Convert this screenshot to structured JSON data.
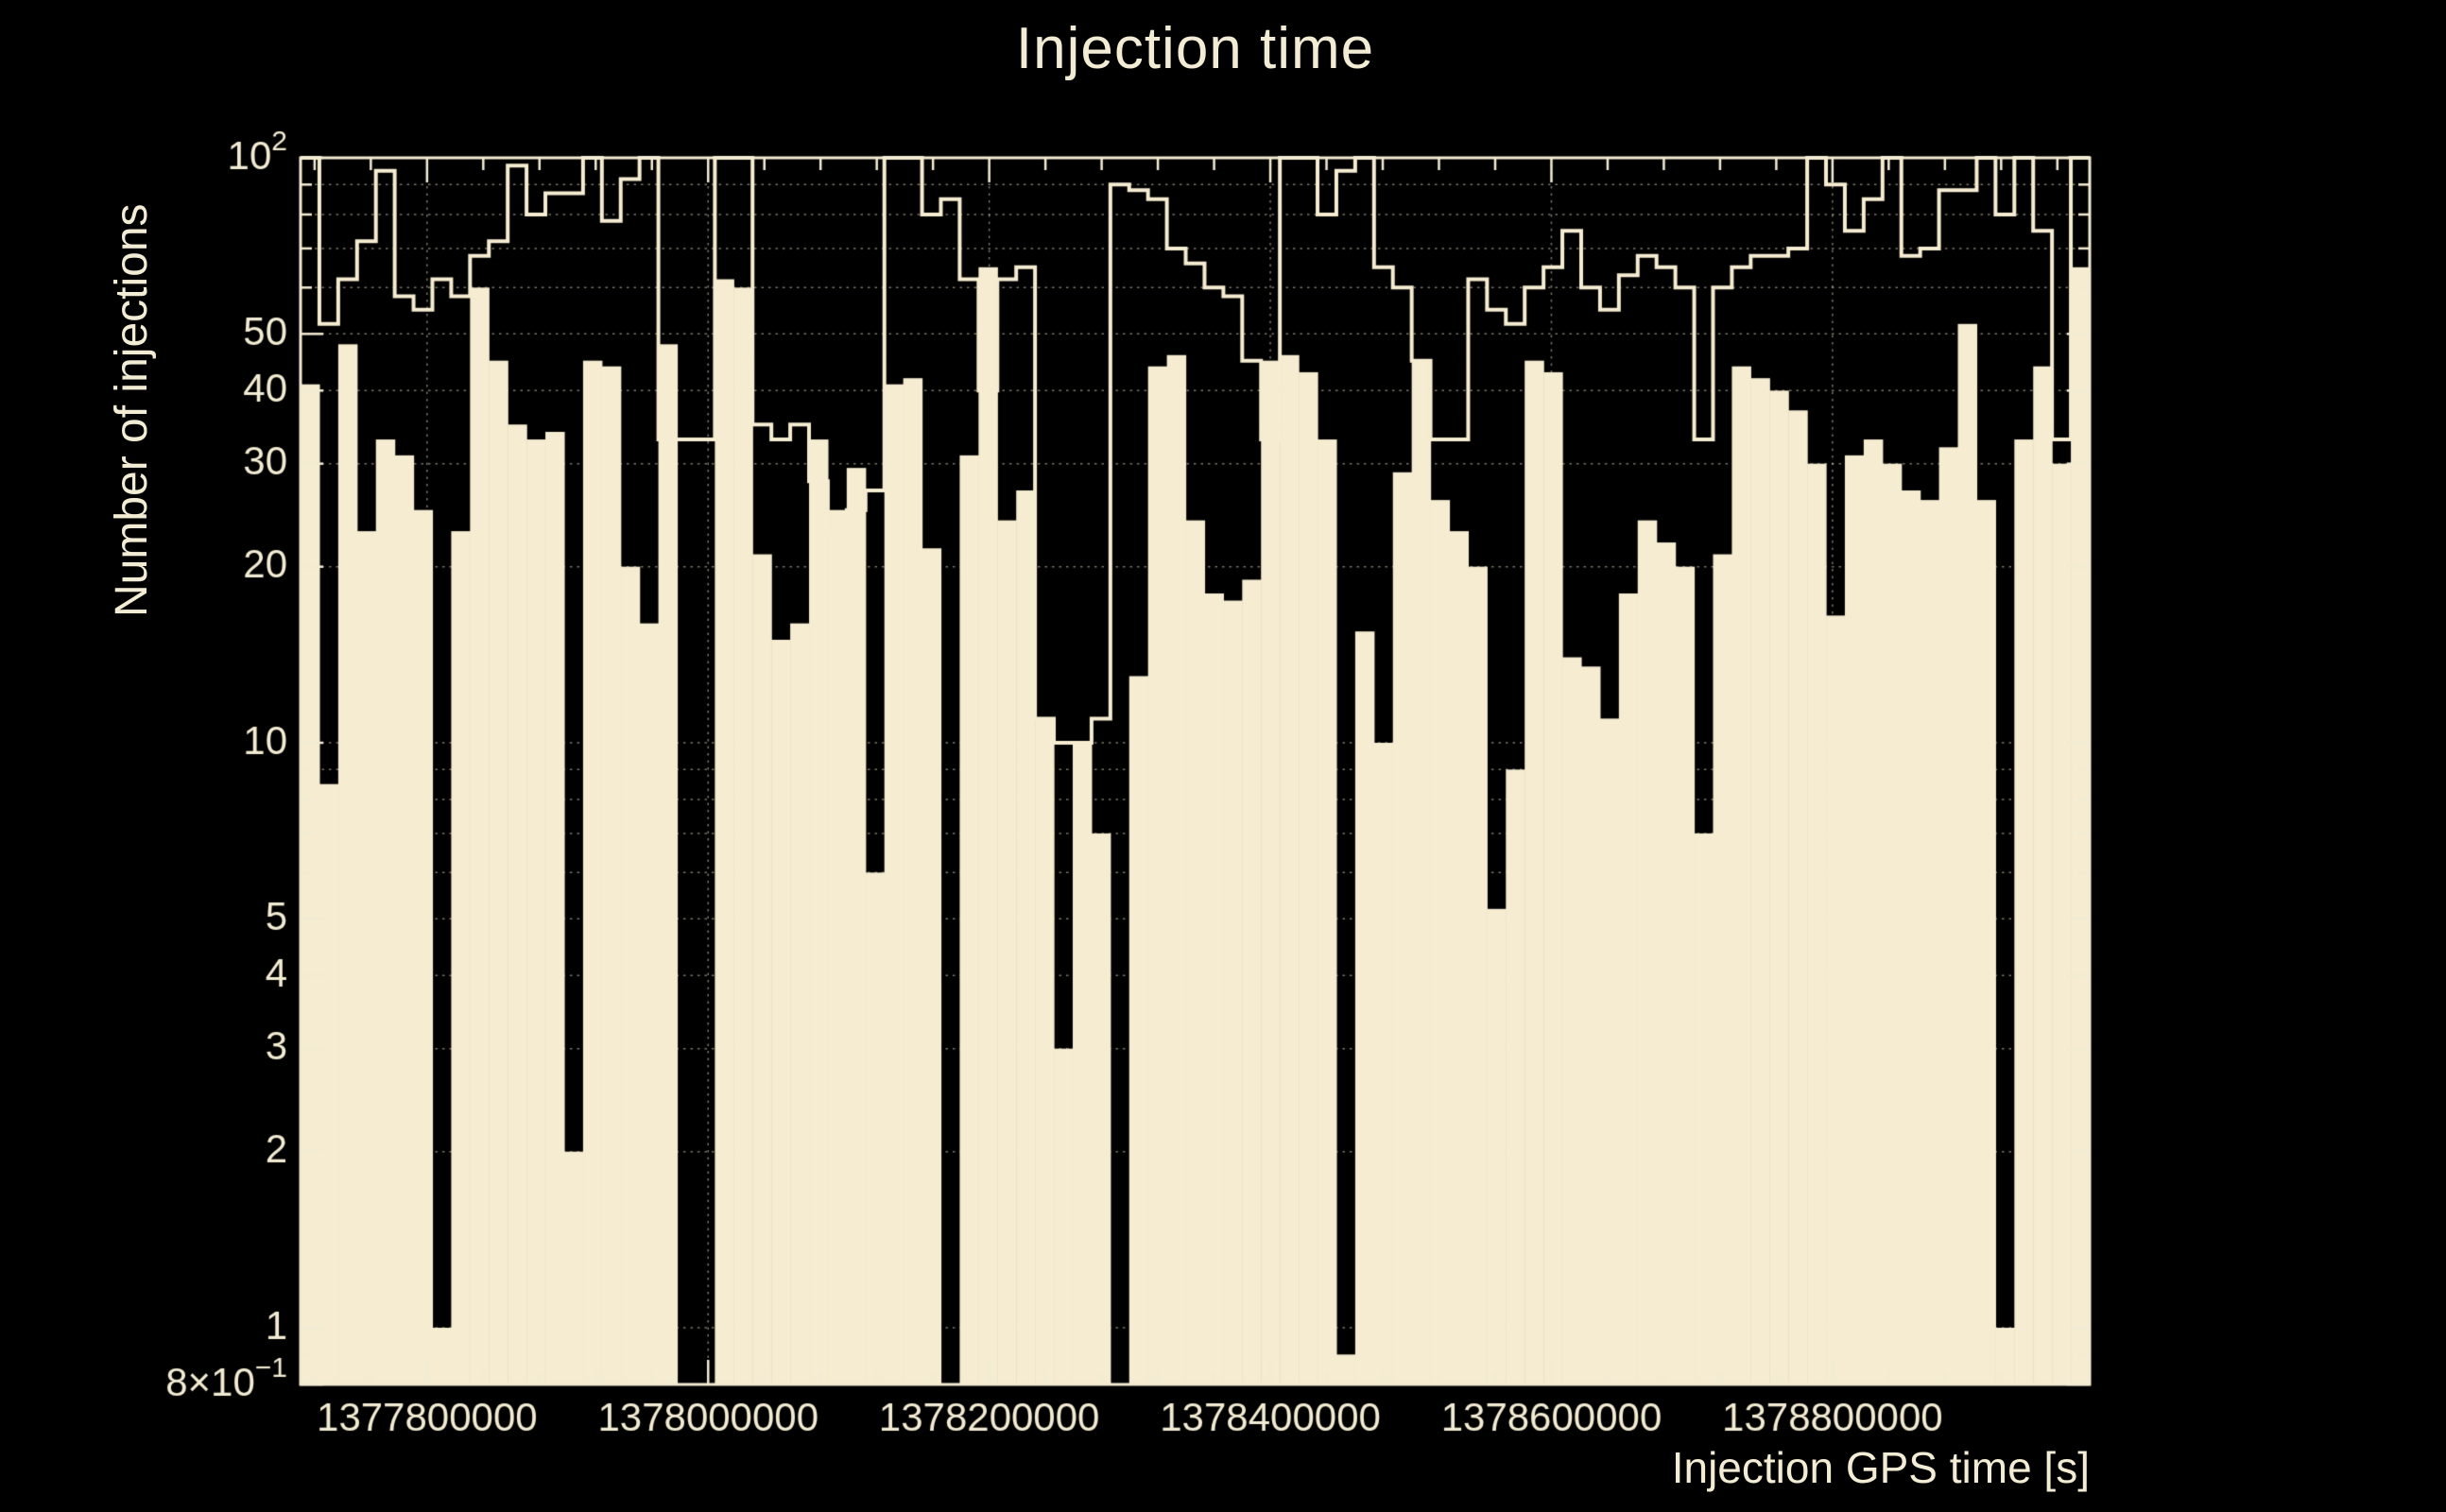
{
  "chart_data": {
    "type": "histogram",
    "title": "Injection time",
    "xlabel": "Injection GPS time [s]",
    "ylabel": "Number of injections",
    "x_min": 1377710000,
    "x_max": 1378983000,
    "y_min": 0.8,
    "y_max": 100,
    "y_scale": "log",
    "grid": "dotted",
    "background": "#000000",
    "bar_color": "#f5ecd1",
    "line_color": "#f5ecd1",
    "axis_color": "#f3ecd4",
    "grid_color": "rgba(243,236,212,0.5)",
    "series": [
      {
        "name": "injections-filled",
        "style": "fill",
        "values": [
          41,
          8.5,
          48,
          23,
          33,
          31,
          25,
          1,
          23,
          60,
          45,
          35,
          33,
          34,
          2,
          45,
          44,
          20,
          16,
          48,
          0,
          0,
          62,
          60,
          21,
          15,
          16,
          33,
          25,
          29.5,
          6,
          41,
          42,
          21.5,
          0,
          31,
          65,
          24,
          27,
          11,
          3,
          10,
          7,
          0,
          13,
          44,
          46,
          24,
          18,
          17.5,
          19,
          45,
          46,
          43,
          33,
          0.9,
          15.5,
          10,
          29,
          45,
          26,
          23,
          20,
          5.2,
          9,
          45,
          43,
          14,
          13.5,
          11,
          18,
          24,
          22,
          20,
          7,
          21,
          44,
          42,
          40,
          37,
          30,
          16.5,
          31,
          33,
          30,
          27,
          26,
          32,
          52,
          26,
          1,
          33,
          44,
          30,
          65
        ]
      },
      {
        "name": "injections-outline",
        "style": "step",
        "values": [
          100,
          52,
          62,
          72,
          95,
          58,
          55,
          62,
          58,
          68,
          72,
          97,
          80,
          87,
          87,
          100,
          78,
          92,
          100,
          33,
          33,
          33,
          100,
          100,
          35,
          33,
          35,
          28,
          23,
          25,
          27,
          100,
          100,
          80,
          85,
          62,
          40,
          62,
          65,
          11,
          10,
          10,
          11,
          90,
          88,
          85,
          70,
          66,
          60,
          58,
          45,
          33,
          100,
          100,
          80,
          95,
          100,
          65,
          60,
          45,
          33,
          33,
          62,
          55,
          52,
          60,
          65,
          75,
          60,
          55,
          63,
          68,
          65,
          60,
          33,
          60,
          65,
          68,
          68,
          70,
          100,
          90,
          75,
          85,
          100,
          68,
          70,
          88,
          88,
          100,
          80,
          100,
          75,
          33,
          100
        ]
      }
    ],
    "x_ticks": [
      {
        "value": 1377800000,
        "label": "1377800000"
      },
      {
        "value": 1378000000,
        "label": "1378000000"
      },
      {
        "value": 1378200000,
        "label": "1378200000"
      },
      {
        "value": 1378400000,
        "label": "1378400000"
      },
      {
        "value": 1378600000,
        "label": "1378600000"
      },
      {
        "value": 1378800000,
        "label": "1378800000"
      }
    ],
    "x_minor_step": 40000,
    "y_ticks": [
      {
        "value": 100,
        "base": "10",
        "exp": "2"
      },
      {
        "value": 50,
        "base": "50",
        "exp": ""
      },
      {
        "value": 40,
        "base": "40",
        "exp": ""
      },
      {
        "value": 30,
        "base": "30",
        "exp": ""
      },
      {
        "value": 20,
        "base": "20",
        "exp": ""
      },
      {
        "value": 10,
        "base": "10",
        "exp": ""
      },
      {
        "value": 5,
        "base": "5",
        "exp": ""
      },
      {
        "value": 4,
        "base": "4",
        "exp": ""
      },
      {
        "value": 3,
        "base": "3",
        "exp": ""
      },
      {
        "value": 2,
        "base": "2",
        "exp": ""
      },
      {
        "value": 1,
        "base": "1",
        "exp": ""
      },
      {
        "value": 0.8,
        "base": "8×10",
        "exp": "−1"
      }
    ],
    "y_grid": [
      1,
      2,
      3,
      4,
      5,
      6,
      7,
      8,
      9,
      10,
      20,
      30,
      40,
      50,
      60,
      70,
      80,
      90,
      100
    ]
  }
}
